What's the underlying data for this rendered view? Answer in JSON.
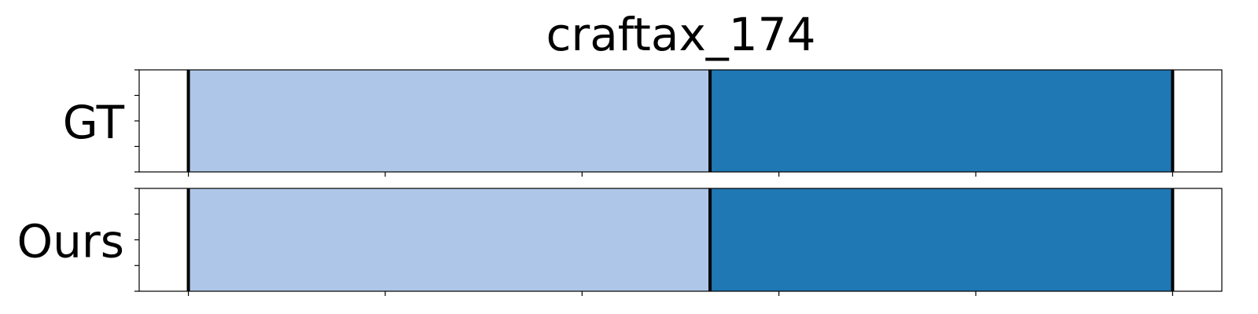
{
  "chart_data": {
    "type": "bar",
    "orientation": "horizontal-segments",
    "title": "craftax_174",
    "rows": [
      {
        "label": "GT",
        "segments": [
          {
            "start": 0,
            "end": 53,
            "color": "#aec7e8"
          },
          {
            "start": 53,
            "end": 100,
            "color": "#1f77b4"
          }
        ],
        "boundaries": [
          0,
          53,
          100
        ]
      },
      {
        "label": "Ours",
        "segments": [
          {
            "start": 0,
            "end": 53,
            "color": "#aec7e8"
          },
          {
            "start": 53,
            "end": 100,
            "color": "#1f77b4"
          }
        ],
        "boundaries": [
          0,
          53,
          100
        ]
      }
    ],
    "xlim": [
      -5,
      105
    ],
    "x_ticks": [
      0,
      20,
      40,
      60,
      80,
      100
    ],
    "x_tick_labels_visible": false,
    "y_tick_count": 5,
    "y_tick_labels_visible": false,
    "boundary_color": "#000000",
    "grid": false,
    "legend": "none"
  }
}
